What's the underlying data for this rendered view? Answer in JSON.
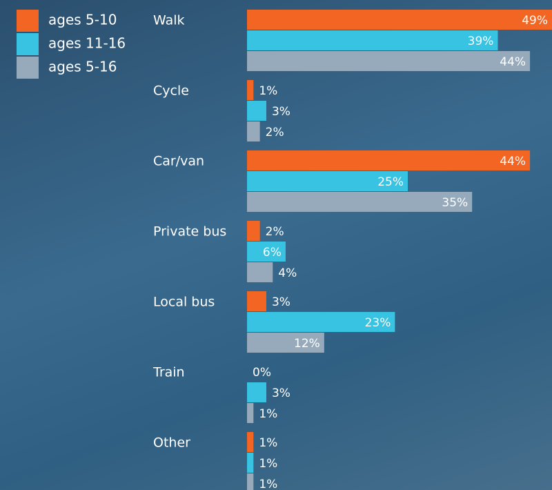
{
  "chart_data": {
    "type": "bar",
    "orientation": "horizontal",
    "categories": [
      "Walk",
      "Cycle",
      "Car/van",
      "Private bus",
      "Local bus",
      "Train",
      "Other"
    ],
    "series": [
      {
        "name": "ages 5-10",
        "color": "#f26522",
        "values": [
          49,
          1,
          44,
          2,
          3,
          0,
          1
        ],
        "value_labels": [
          "49%",
          "1%",
          "44%",
          "2%",
          "3%",
          "0%",
          "1%"
        ]
      },
      {
        "name": "ages 11-16",
        "color": "#38c3e3",
        "values": [
          39,
          3,
          25,
          6,
          23,
          3,
          1
        ],
        "value_labels": [
          "39%",
          "3%",
          "25%",
          "6%",
          "23%",
          "3%",
          "1%"
        ]
      },
      {
        "name": "ages 5-16",
        "color": "#97aabb",
        "values": [
          44,
          2,
          35,
          4,
          12,
          1,
          1
        ],
        "value_labels": [
          "44%",
          "2%",
          "35%",
          "4%",
          "12%",
          "1%",
          "1%"
        ]
      }
    ]
  }
}
